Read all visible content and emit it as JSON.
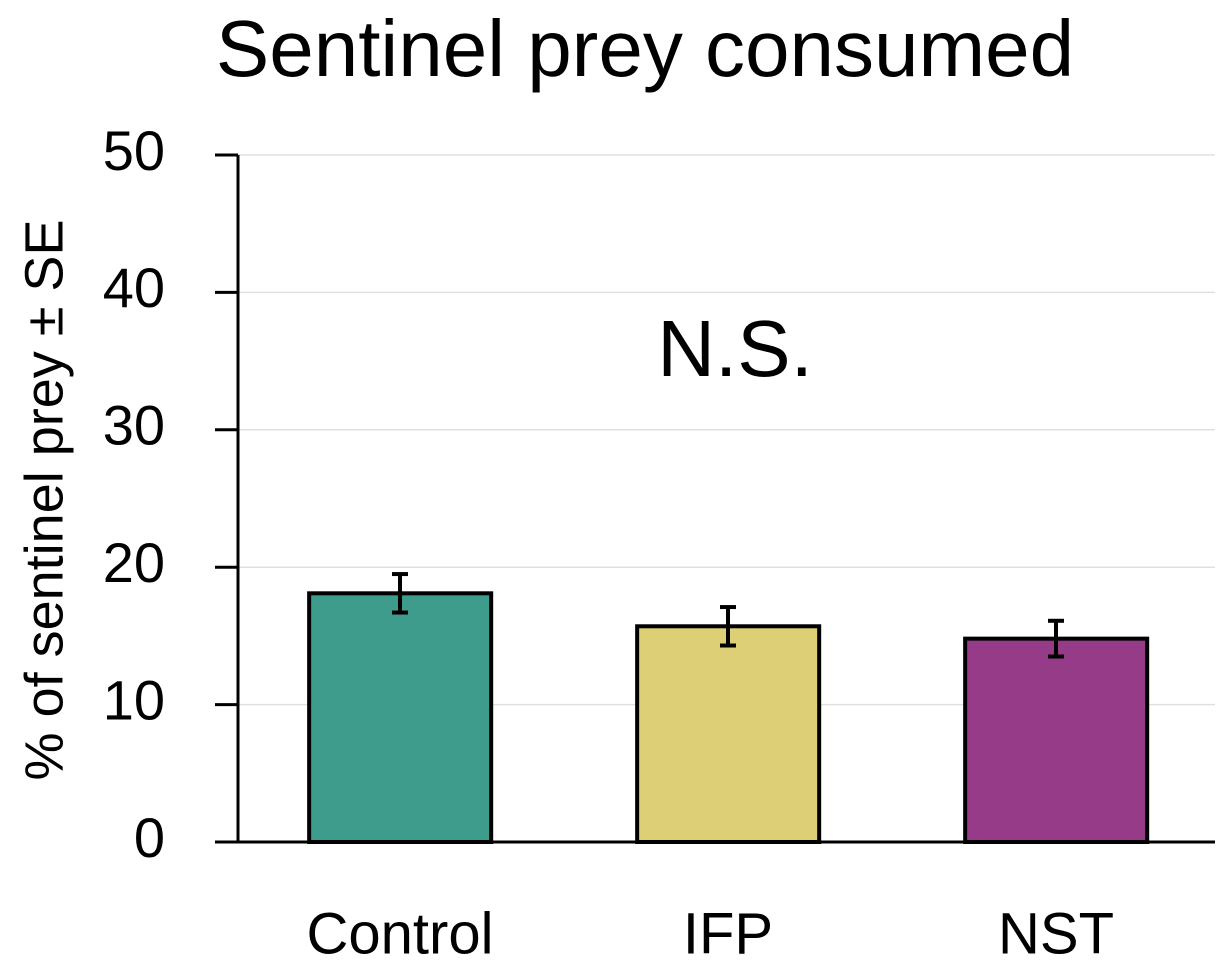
{
  "chart_data": {
    "type": "bar",
    "title": "Sentinel prey consumed",
    "y_label": "% of sentinel prey ± SE",
    "annotation": "N.S.",
    "categories": [
      "Control",
      "IFP",
      "NST"
    ],
    "values": [
      18.1,
      15.7,
      14.8
    ],
    "errors": [
      1.4,
      1.4,
      1.3
    ],
    "colors": [
      "#3d9c8c",
      "#dccf76",
      "#953b87"
    ],
    "ylim": [
      0,
      50
    ],
    "yticks": [
      0,
      10,
      20,
      30,
      40,
      50
    ],
    "grid": true
  }
}
